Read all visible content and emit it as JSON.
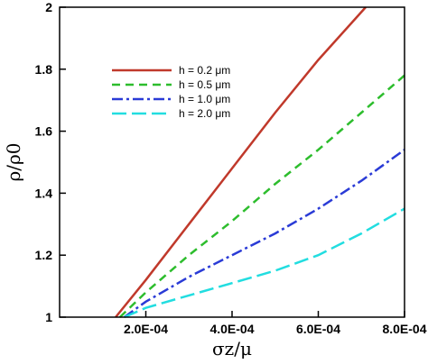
{
  "chart_data": {
    "type": "line",
    "title": "",
    "xlabel": "σz/μ",
    "ylabel": "ρ/ρ0",
    "xlim": [
      0,
      0.0008
    ],
    "ylim": [
      1,
      2
    ],
    "x_ticks": [
      {
        "value": 0.0002,
        "label": "2.0E-04"
      },
      {
        "value": 0.0004,
        "label": "4.0E-04"
      },
      {
        "value": 0.0006,
        "label": "6.0E-04"
      },
      {
        "value": 0.0008,
        "label": "8.0E-04"
      }
    ],
    "y_ticks": [
      {
        "value": 1,
        "label": "1"
      },
      {
        "value": 1.2,
        "label": "1.2"
      },
      {
        "value": 1.4,
        "label": "1.4"
      },
      {
        "value": 1.6,
        "label": "1.6"
      },
      {
        "value": 1.8,
        "label": "1.8"
      },
      {
        "value": 2,
        "label": "2"
      }
    ],
    "grid": false,
    "legend_position": "upper-left",
    "series": [
      {
        "name": "h = 0.2 μm",
        "color": "#c0392b",
        "dash": "solid",
        "x": [
          0.00013,
          0.0002,
          0.0003,
          0.0004,
          0.0005,
          0.0006,
          0.00071
        ],
        "y": [
          1.0,
          1.12,
          1.3,
          1.48,
          1.66,
          1.83,
          2.0
        ]
      },
      {
        "name": "h = 0.5 μm",
        "color": "#2dbd2d",
        "dash": "dashed",
        "x": [
          0.00014,
          0.0002,
          0.0003,
          0.0004,
          0.0005,
          0.0006,
          0.0007,
          0.0008
        ],
        "y": [
          1.0,
          1.08,
          1.2,
          1.31,
          1.43,
          1.54,
          1.66,
          1.78
        ]
      },
      {
        "name": "h = 1.0 μm",
        "color": "#2a3bd6",
        "dash": "dashdot",
        "x": [
          0.00015,
          0.0002,
          0.0003,
          0.0004,
          0.0005,
          0.0006,
          0.0007,
          0.0008
        ],
        "y": [
          1.0,
          1.05,
          1.13,
          1.2,
          1.27,
          1.35,
          1.44,
          1.54
        ]
      },
      {
        "name": "h = 2.0 μm",
        "color": "#22dde0",
        "dash": "longdash",
        "x": [
          0.00015,
          0.0002,
          0.0003,
          0.0004,
          0.0005,
          0.0006,
          0.0007,
          0.0008
        ],
        "y": [
          1.0,
          1.03,
          1.07,
          1.11,
          1.15,
          1.2,
          1.27,
          1.35
        ]
      }
    ]
  }
}
